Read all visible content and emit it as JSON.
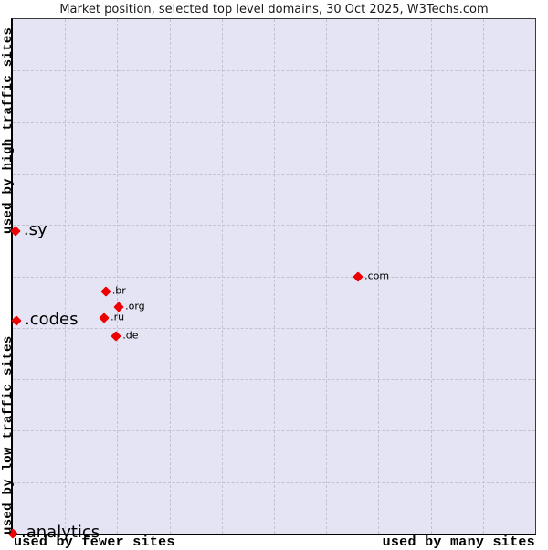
{
  "title": "Market position, selected top level domains, 30 Oct 2025, W3Techs.com",
  "axes": {
    "y_top": "used by high traffic sites",
    "y_bottom": "used by low traffic sites",
    "x_left": "used by fewer sites",
    "x_right": "used by many sites"
  },
  "colors": {
    "point": "#ee0000",
    "plot_background": "#e4e4f4",
    "gridline": "#c2c2cd",
    "axis_line": "#000000",
    "title_text": "#1a1a1a"
  },
  "chart_data": {
    "type": "scatter",
    "title": "Market position, selected top level domains, 30 Oct 2025, W3Techs.com",
    "x_axis": {
      "label_low": "used by fewer sites",
      "label_high": "used by many sites",
      "range": [
        0,
        1
      ],
      "ticks_labeled": false
    },
    "y_axis": {
      "label_low": "used by low traffic sites",
      "label_high": "used by high traffic sites",
      "range": [
        0,
        1
      ],
      "ticks_labeled": false
    },
    "grid": {
      "on": true,
      "style": "dashed",
      "columns": 10,
      "rows": 10
    },
    "marker": {
      "shape": "diamond",
      "color": "#ee0000"
    },
    "points": [
      {
        "label": ".sy",
        "x": 0.005,
        "y": 0.588,
        "label_size": "large"
      },
      {
        "label": ".com",
        "x": 0.661,
        "y": 0.499,
        "label_size": "small"
      },
      {
        "label": ".br",
        "x": 0.178,
        "y": 0.471,
        "label_size": "small"
      },
      {
        "label": ".org",
        "x": 0.203,
        "y": 0.441,
        "label_size": "small"
      },
      {
        "label": ".ru",
        "x": 0.175,
        "y": 0.419,
        "label_size": "small"
      },
      {
        "label": ".codes",
        "x": 0.007,
        "y": 0.414,
        "label_size": "large"
      },
      {
        "label": ".de",
        "x": 0.198,
        "y": 0.384,
        "label_size": "small"
      },
      {
        "label": ".analytics",
        "x": 0.0,
        "y": 0.0,
        "label_size": "large"
      }
    ]
  }
}
